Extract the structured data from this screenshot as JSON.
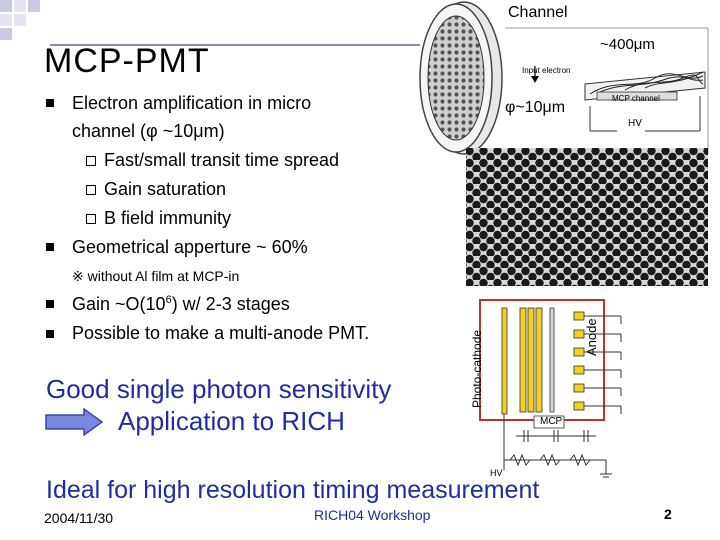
{
  "slide": {
    "title": "MCP-PMT",
    "bullets": [
      {
        "line1": "Electron amplification in micro",
        "line2": "channel (φ ~10μm)"
      },
      {
        "line1": "Geometrical apperture ~ 60%"
      }
    ],
    "sub_bullets": [
      "Fast/small transit time spread",
      "Gain saturation",
      "B field immunity"
    ],
    "note": "※ without Al film at MCP-in",
    "bullets2": [
      {
        "pre": "Gain ~O(10",
        "sup": "6",
        "post": ") w/ 2-3 stages"
      },
      {
        "text": "Possible to make a multi-anode PMT."
      }
    ],
    "highlight": {
      "line1": "Good single photon sensitivity",
      "line2": "Application to RICH"
    },
    "conclusion": "Ideal for high resolution timing measurement"
  },
  "figure_labels": {
    "channel": "Channel",
    "size_400": "~400μm",
    "size_10": "φ~10μm",
    "input_electron": "Input electron",
    "mcp_channel": "MCP channel",
    "hv_top": "HV",
    "photocathode": "Photo-cathode",
    "anode": "Anode",
    "mcp": "MCP",
    "hv_bottom": "HV"
  },
  "footer": {
    "date": "2004/11/30",
    "event": "RICH04 Workshop",
    "page": "2"
  },
  "colors": {
    "accent": "#1f2da0",
    "arrow": "#7b86e0",
    "schematic_frame": "#c03030",
    "plate": "#f0d020"
  }
}
